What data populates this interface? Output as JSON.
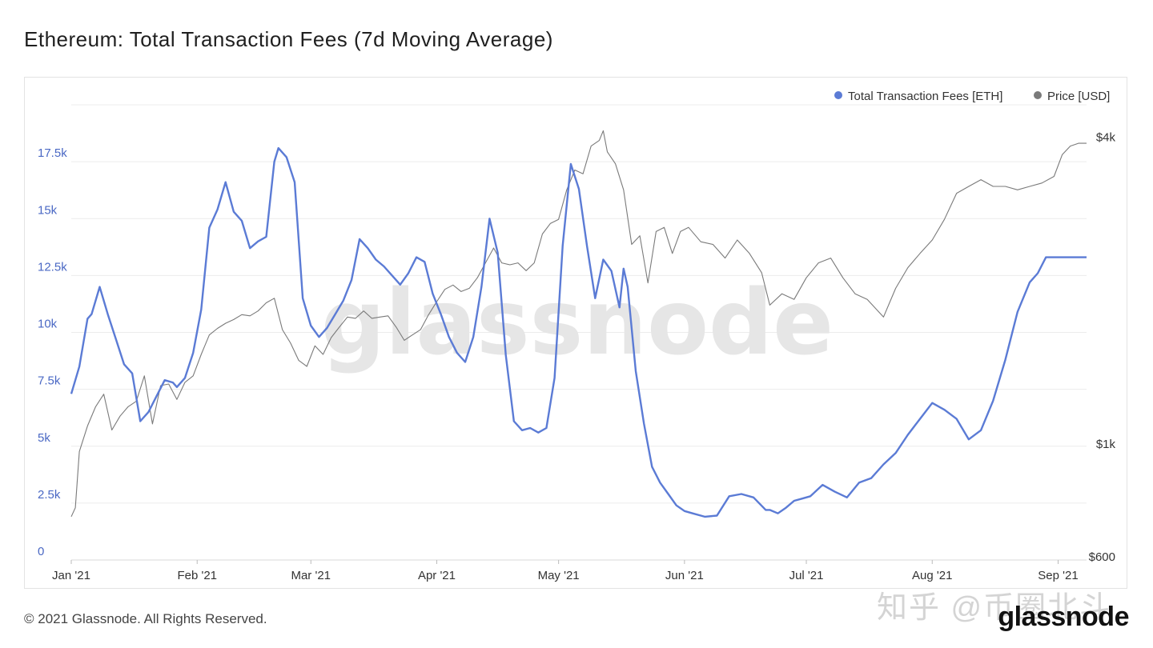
{
  "page": {
    "title": "Ethereum: Total Transaction Fees (7d Moving Average)",
    "footer": "© 2021 Glassnode. All Rights Reserved.",
    "brand": "glassnode",
    "chart_watermark": "glassnode",
    "overlay_watermark": "知乎 @币圈北斗"
  },
  "colors": {
    "fees": "#5b7bd5",
    "price": "#7a7a7a",
    "grid": "#ececec",
    "left_tick": "#4a68c4",
    "right_tick": "#333333",
    "watermark": "#e6e6e6"
  },
  "chart_data": {
    "type": "line",
    "title": "Ethereum: Total Transaction Fees (7d Moving Average)",
    "legend_position": "top-right",
    "grid": true,
    "x_ticks": [
      "Jan '21",
      "Feb '21",
      "Mar '21",
      "Apr '21",
      "May '21",
      "Jun '21",
      "Jul '21",
      "Aug '21",
      "Sep '21"
    ],
    "x_range": [
      "2021-01-01",
      "2021-09-08"
    ],
    "y_left": {
      "ticks": [
        "0",
        "2.5k",
        "5k",
        "7.5k",
        "10k",
        "12.5k",
        "15k",
        "17.5k"
      ],
      "tick_values": [
        0,
        2500,
        5000,
        7500,
        10000,
        12500,
        15000,
        17500
      ],
      "range": [
        0,
        20000
      ]
    },
    "y_right": {
      "scale": "log",
      "ticks": [
        "$600",
        "$1k",
        "$4k"
      ],
      "tick_values": [
        600,
        1000,
        4000
      ],
      "range": [
        600,
        4700
      ]
    },
    "series": [
      {
        "name": "Total Transaction Fees [ETH]",
        "axis": "left",
        "x": [
          "2021-01-01",
          "2021-01-03",
          "2021-01-05",
          "2021-01-06",
          "2021-01-08",
          "2021-01-10",
          "2021-01-12",
          "2021-01-14",
          "2021-01-16",
          "2021-01-18",
          "2021-01-20",
          "2021-01-22",
          "2021-01-24",
          "2021-01-26",
          "2021-01-27",
          "2021-01-29",
          "2021-01-31",
          "2021-02-02",
          "2021-02-04",
          "2021-02-06",
          "2021-02-08",
          "2021-02-10",
          "2021-02-12",
          "2021-02-14",
          "2021-02-16",
          "2021-02-18",
          "2021-02-20",
          "2021-02-21",
          "2021-02-23",
          "2021-02-25",
          "2021-02-27",
          "2021-03-01",
          "2021-03-03",
          "2021-03-05",
          "2021-03-07",
          "2021-03-09",
          "2021-03-11",
          "2021-03-13",
          "2021-03-15",
          "2021-03-17",
          "2021-03-19",
          "2021-03-21",
          "2021-03-23",
          "2021-03-25",
          "2021-03-27",
          "2021-03-29",
          "2021-03-31",
          "2021-04-02",
          "2021-04-04",
          "2021-04-06",
          "2021-04-08",
          "2021-04-10",
          "2021-04-12",
          "2021-04-14",
          "2021-04-16",
          "2021-04-18",
          "2021-04-20",
          "2021-04-22",
          "2021-04-24",
          "2021-04-26",
          "2021-04-28",
          "2021-04-30",
          "2021-05-02",
          "2021-05-04",
          "2021-05-06",
          "2021-05-08",
          "2021-05-10",
          "2021-05-12",
          "2021-05-14",
          "2021-05-16",
          "2021-05-17",
          "2021-05-18",
          "2021-05-20",
          "2021-05-22",
          "2021-05-24",
          "2021-05-26",
          "2021-05-28",
          "2021-05-30",
          "2021-06-01",
          "2021-06-03",
          "2021-06-06",
          "2021-06-09",
          "2021-06-12",
          "2021-06-15",
          "2021-06-18",
          "2021-06-21",
          "2021-06-22",
          "2021-06-24",
          "2021-06-26",
          "2021-06-28",
          "2021-06-30",
          "2021-07-02",
          "2021-07-05",
          "2021-07-08",
          "2021-07-11",
          "2021-07-14",
          "2021-07-17",
          "2021-07-20",
          "2021-07-23",
          "2021-07-26",
          "2021-07-29",
          "2021-08-01",
          "2021-08-04",
          "2021-08-07",
          "2021-08-10",
          "2021-08-13",
          "2021-08-16",
          "2021-08-19",
          "2021-08-22",
          "2021-08-25",
          "2021-08-27",
          "2021-08-29",
          "2021-08-31",
          "2021-09-02",
          "2021-09-04",
          "2021-09-06",
          "2021-09-08"
        ],
        "values": [
          7300,
          8500,
          10600,
          10800,
          12000,
          10800,
          9700,
          8600,
          8200,
          6100,
          6500,
          7200,
          7900,
          7800,
          7600,
          8000,
          9100,
          11000,
          14600,
          15400,
          16600,
          15300,
          14900,
          13700,
          14000,
          14200,
          17500,
          18100,
          17700,
          16600,
          11500,
          10300,
          9800,
          10200,
          10800,
          11400,
          12300,
          14100,
          13700,
          13200,
          12900,
          12500,
          12100,
          12600,
          13300,
          13100,
          11700,
          10800,
          9800,
          9100,
          8700,
          9800,
          12000,
          15000,
          13500,
          9000,
          6100,
          5700,
          5800,
          5600,
          5800,
          8000,
          13800,
          17400,
          16300,
          13800,
          11500,
          13200,
          12700,
          11100,
          12800,
          12000,
          8300,
          6000,
          4100,
          3400,
          2900,
          2400,
          2150,
          2050,
          1900,
          1950,
          2800,
          2900,
          2750,
          2200,
          2200,
          2050,
          2300,
          2600,
          2700,
          2800,
          3300,
          3000,
          2750,
          3400,
          3600,
          4200,
          4700,
          5500,
          6200,
          6900,
          6600,
          6200,
          5300,
          5700,
          7000,
          8800,
          10900,
          12200,
          12600,
          13300,
          13300,
          13300,
          13300,
          13300,
          13300
        ],
        "note_values_end": 13300
      },
      {
        "name": "Price [USD]",
        "axis": "right",
        "x": [
          "2021-01-01",
          "2021-01-02",
          "2021-01-03",
          "2021-01-05",
          "2021-01-07",
          "2021-01-09",
          "2021-01-11",
          "2021-01-13",
          "2021-01-15",
          "2021-01-17",
          "2021-01-19",
          "2021-01-21",
          "2021-01-23",
          "2021-01-25",
          "2021-01-27",
          "2021-01-29",
          "2021-01-31",
          "2021-02-02",
          "2021-02-04",
          "2021-02-06",
          "2021-02-08",
          "2021-02-10",
          "2021-02-12",
          "2021-02-14",
          "2021-02-16",
          "2021-02-18",
          "2021-02-20",
          "2021-02-22",
          "2021-02-24",
          "2021-02-26",
          "2021-02-28",
          "2021-03-02",
          "2021-03-04",
          "2021-03-06",
          "2021-03-08",
          "2021-03-10",
          "2021-03-12",
          "2021-03-14",
          "2021-03-16",
          "2021-03-18",
          "2021-03-20",
          "2021-03-22",
          "2021-03-24",
          "2021-03-26",
          "2021-03-28",
          "2021-03-30",
          "2021-04-01",
          "2021-04-03",
          "2021-04-05",
          "2021-04-07",
          "2021-04-09",
          "2021-04-11",
          "2021-04-13",
          "2021-04-15",
          "2021-04-17",
          "2021-04-19",
          "2021-04-21",
          "2021-04-23",
          "2021-04-25",
          "2021-04-27",
          "2021-04-29",
          "2021-05-01",
          "2021-05-03",
          "2021-05-05",
          "2021-05-07",
          "2021-05-09",
          "2021-05-11",
          "2021-05-12",
          "2021-05-13",
          "2021-05-15",
          "2021-05-17",
          "2021-05-19",
          "2021-05-21",
          "2021-05-23",
          "2021-05-25",
          "2021-05-27",
          "2021-05-29",
          "2021-05-31",
          "2021-06-02",
          "2021-06-05",
          "2021-06-08",
          "2021-06-11",
          "2021-06-14",
          "2021-06-17",
          "2021-06-20",
          "2021-06-22",
          "2021-06-25",
          "2021-06-28",
          "2021-07-01",
          "2021-07-04",
          "2021-07-07",
          "2021-07-10",
          "2021-07-13",
          "2021-07-16",
          "2021-07-20",
          "2021-07-23",
          "2021-07-26",
          "2021-07-29",
          "2021-08-01",
          "2021-08-04",
          "2021-08-07",
          "2021-08-10",
          "2021-08-13",
          "2021-08-16",
          "2021-08-19",
          "2021-08-22",
          "2021-08-25",
          "2021-08-28",
          "2021-08-31",
          "2021-09-02",
          "2021-09-04",
          "2021-09-06",
          "2021-09-08"
        ],
        "values": [
          730,
          760,
          980,
          1100,
          1200,
          1270,
          1080,
          1150,
          1200,
          1230,
          1380,
          1110,
          1320,
          1330,
          1240,
          1340,
          1380,
          1520,
          1660,
          1710,
          1750,
          1780,
          1820,
          1810,
          1850,
          1920,
          1960,
          1700,
          1600,
          1480,
          1440,
          1580,
          1520,
          1640,
          1720,
          1800,
          1790,
          1850,
          1790,
          1800,
          1810,
          1720,
          1620,
          1660,
          1700,
          1820,
          1930,
          2040,
          2080,
          2020,
          2050,
          2150,
          2300,
          2460,
          2300,
          2280,
          2300,
          2220,
          2300,
          2620,
          2750,
          2800,
          3200,
          3500,
          3440,
          3900,
          4000,
          4180,
          3800,
          3600,
          3200,
          2500,
          2600,
          2100,
          2650,
          2700,
          2400,
          2650,
          2700,
          2530,
          2500,
          2350,
          2550,
          2400,
          2200,
          1900,
          2000,
          1950,
          2150,
          2300,
          2350,
          2150,
          2000,
          1950,
          1800,
          2050,
          2250,
          2400,
          2550,
          2800,
          3150,
          3250,
          3350,
          3250,
          3250,
          3200,
          3250,
          3300,
          3400,
          3750,
          3900,
          3950,
          3950
        ]
      }
    ]
  }
}
